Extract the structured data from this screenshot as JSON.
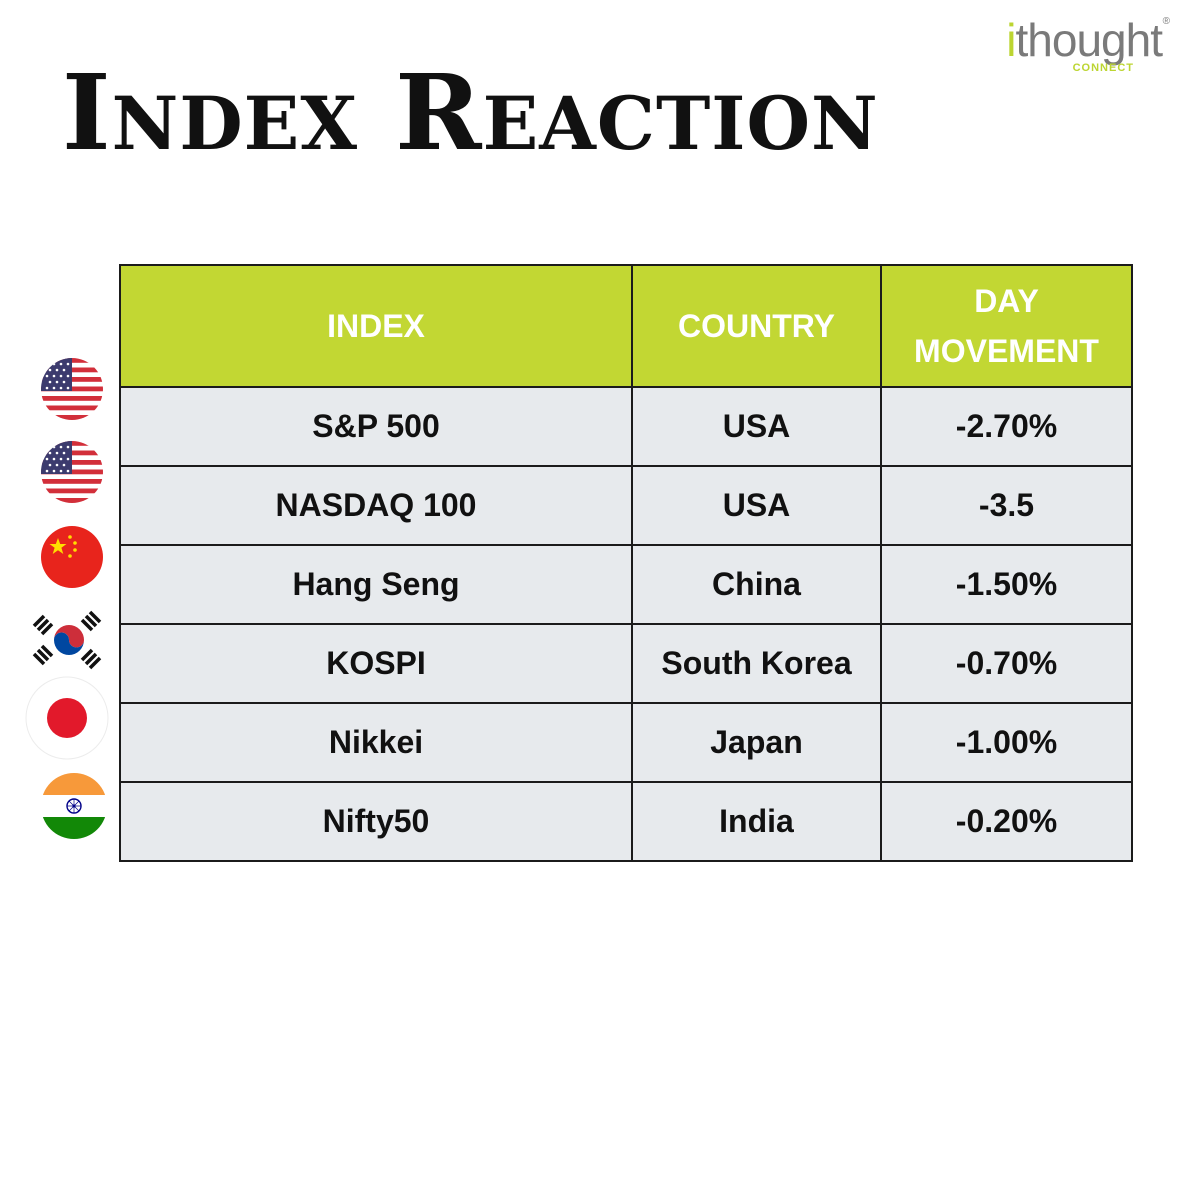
{
  "title": "Index Reaction",
  "logo": {
    "main": "thought",
    "i": "i",
    "sub": "CONNECT",
    "reg": "®"
  },
  "colors": {
    "header_bg": "#c2d733",
    "cell_bg": "#e7eaed",
    "border": "#1b1b1b",
    "logo_green": "#bcd531"
  },
  "chart_data": {
    "type": "table",
    "columns": [
      "INDEX",
      "COUNTRY",
      "DAY MOVEMENT"
    ],
    "rows": [
      {
        "index": "S&P 500",
        "country": "USA",
        "day_movement": "-2.70%",
        "flag": "usa-flag-icon"
      },
      {
        "index": "NASDAQ 100",
        "country": "USA",
        "day_movement": "-3.5",
        "flag": "usa-flag-icon"
      },
      {
        "index": "Hang Seng",
        "country": "China",
        "day_movement": "-1.50%",
        "flag": "china-flag-icon"
      },
      {
        "index": "KOSPI",
        "country": "South Korea",
        "day_movement": "-0.70%",
        "flag": "south-korea-flag-icon"
      },
      {
        "index": "Nikkei",
        "country": "Japan",
        "day_movement": "-1.00%",
        "flag": "japan-flag-icon"
      },
      {
        "index": "Nifty50",
        "country": "India",
        "day_movement": "-0.20%",
        "flag": "india-flag-icon"
      }
    ]
  }
}
